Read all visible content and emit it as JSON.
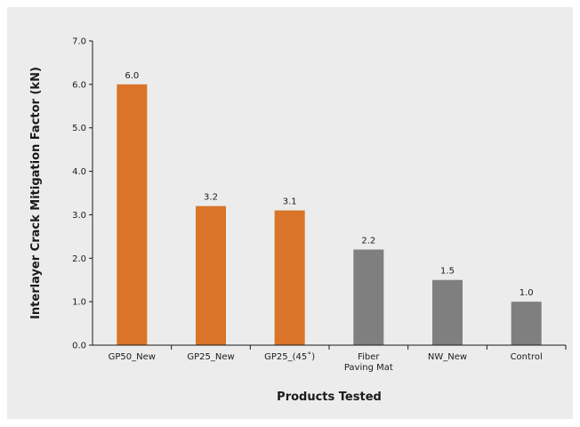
{
  "chart_data": {
    "type": "bar",
    "title": "",
    "xlabel": "Products Tested",
    "ylabel": "Interlayer Crack Mitigation Factor (kN)",
    "ylim": [
      0,
      7
    ],
    "yticks": [
      "0.0",
      "1.0",
      "2.0",
      "3.0",
      "4.0",
      "5.0",
      "6.0",
      "7.0"
    ],
    "grid": false,
    "categories": [
      [
        "GP50_New"
      ],
      [
        "GP25_New"
      ],
      [
        "GP25_(45˚)"
      ],
      [
        "Fiber",
        "Paving Mat"
      ],
      [
        "NW_New"
      ],
      [
        "Control"
      ]
    ],
    "values": [
      6.0,
      3.2,
      3.1,
      2.2,
      1.5,
      1.0
    ],
    "value_labels": [
      "6.0",
      "3.2",
      "3.1",
      "2.2",
      "1.5",
      "1.0"
    ],
    "bar_colors": [
      "#d97428",
      "#d97428",
      "#d97428",
      "#7f7f7f",
      "#7f7f7f",
      "#7f7f7f"
    ]
  }
}
